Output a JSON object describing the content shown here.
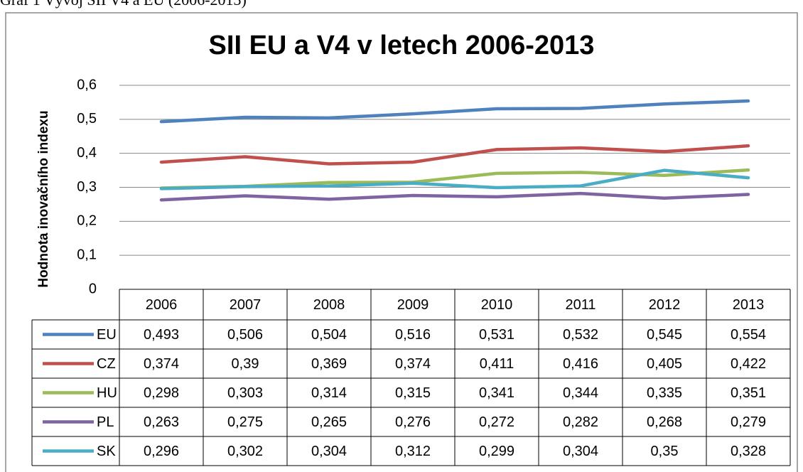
{
  "caption": "Graf 1 Vývoj SII V4 a EU (2006-2013)",
  "chart_data": {
    "type": "line",
    "title": "SII EU a V4 v letech 2006-2013",
    "y_label": "Hodnota inovačního indexu",
    "categories": [
      "2006",
      "2007",
      "2008",
      "2009",
      "2010",
      "2011",
      "2012",
      "2013"
    ],
    "ylim": [
      0,
      0.6
    ],
    "yticks": [
      0,
      {
        "value": 0.1,
        "label": "0,1"
      },
      {
        "value": 0.2,
        "label": "0,2"
      },
      {
        "value": 0.3,
        "label": "0,3"
      },
      {
        "value": 0.4,
        "label": "0,4"
      },
      {
        "value": 0.5,
        "label": "0,5"
      },
      {
        "value": 0.6,
        "label": "0,6"
      }
    ],
    "grid": true,
    "data_table": true,
    "series": [
      {
        "name": "EU",
        "color": "#4f81bd",
        "values": [
          0.493,
          0.506,
          0.504,
          0.516,
          0.531,
          0.532,
          0.545,
          0.554
        ],
        "value_labels": [
          "0,493",
          "0,506",
          "0,504",
          "0,516",
          "0,531",
          "0,532",
          "0,545",
          "0,554"
        ]
      },
      {
        "name": "CZ",
        "color": "#c0504d",
        "values": [
          0.374,
          0.39,
          0.369,
          0.374,
          0.411,
          0.416,
          0.405,
          0.422
        ],
        "value_labels": [
          "0,374",
          "0,39",
          "0,369",
          "0,374",
          "0,411",
          "0,416",
          "0,405",
          "0,422"
        ]
      },
      {
        "name": "HU",
        "color": "#9bbb59",
        "values": [
          0.298,
          0.303,
          0.314,
          0.315,
          0.341,
          0.344,
          0.335,
          0.351
        ],
        "value_labels": [
          "0,298",
          "0,303",
          "0,314",
          "0,315",
          "0,341",
          "0,344",
          "0,335",
          "0,351"
        ]
      },
      {
        "name": "PL",
        "color": "#8064a2",
        "values": [
          0.263,
          0.275,
          0.265,
          0.276,
          0.272,
          0.282,
          0.268,
          0.279
        ],
        "value_labels": [
          "0,263",
          "0,275",
          "0,265",
          "0,276",
          "0,272",
          "0,282",
          "0,268",
          "0,279"
        ]
      },
      {
        "name": "SK",
        "color": "#4bacc6",
        "values": [
          0.296,
          0.302,
          0.304,
          0.312,
          0.299,
          0.304,
          0.35,
          0.328
        ],
        "value_labels": [
          "0,296",
          "0,302",
          "0,304",
          "0,312",
          "0,299",
          "0,304",
          "0,35",
          "0,328"
        ]
      }
    ]
  }
}
